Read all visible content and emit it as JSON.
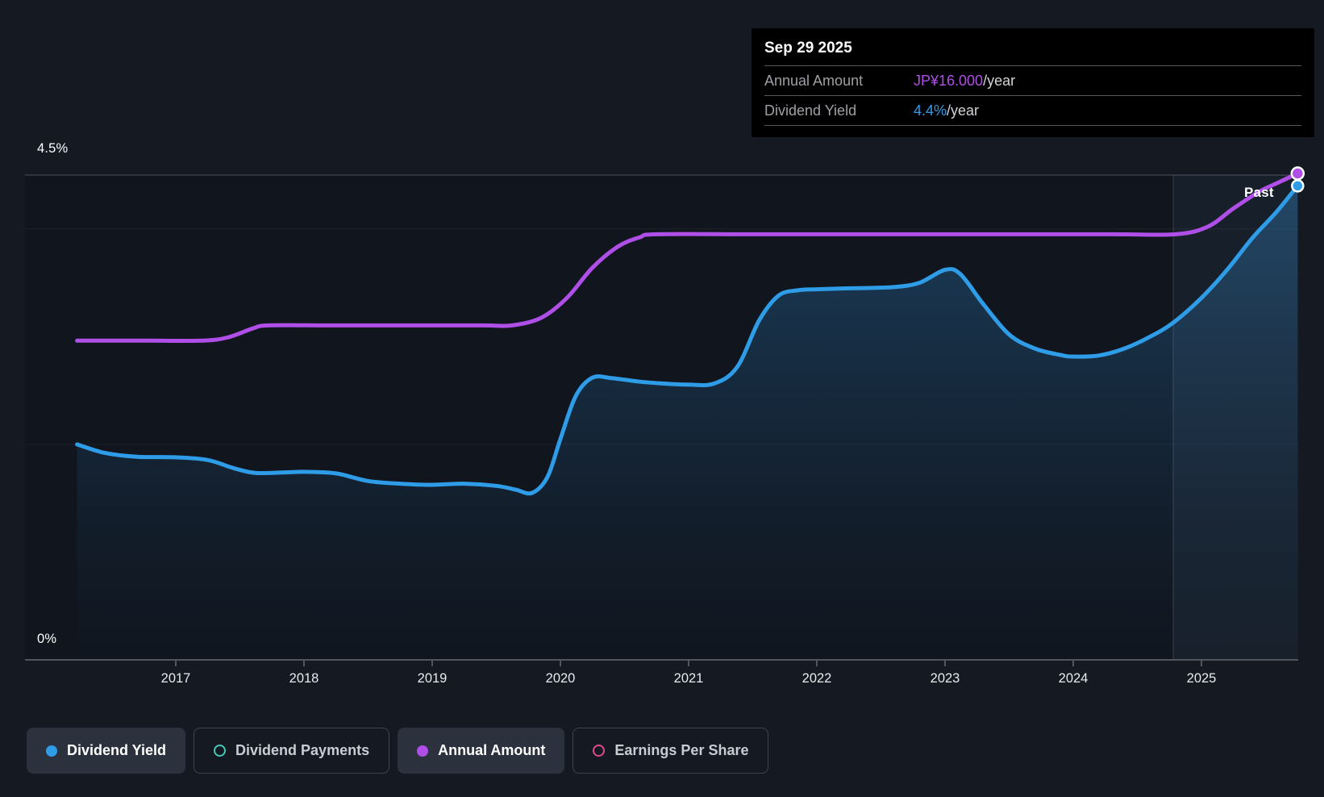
{
  "tooltip": {
    "date": "Sep 29 2025",
    "rows": [
      {
        "label": "Annual Amount",
        "value": "JP¥16.000",
        "suffix": "/year",
        "color": "#b04ee8"
      },
      {
        "label": "Dividend Yield",
        "value": "4.4%",
        "suffix": "/year",
        "color": "#2f9ce8"
      }
    ]
  },
  "axis": {
    "y_top": "4.5%",
    "y_bottom": "0%",
    "years": [
      "2017",
      "2018",
      "2019",
      "2020",
      "2021",
      "2022",
      "2023",
      "2024",
      "2025"
    ],
    "past": "Past"
  },
  "legend": {
    "items": [
      {
        "label": "Dividend Yield",
        "marker": "filled",
        "color": "#2f9ce8",
        "active": true
      },
      {
        "label": "Dividend Payments",
        "marker": "open",
        "color": "#45c8b8",
        "active": false
      },
      {
        "label": "Annual Amount",
        "marker": "filled",
        "color": "#b04ee8",
        "active": true
      },
      {
        "label": "Earnings Per Share",
        "marker": "open",
        "color": "#e04a90",
        "active": false
      }
    ]
  },
  "colors": {
    "page_bg": "#151922",
    "plot_bg": "#10151e",
    "blue": "#2f9ce8",
    "purple": "#b04ee8",
    "grid_strong": "#41464f",
    "axis_line": "#51565e"
  },
  "chart_data": {
    "type": "line",
    "title": "Dividend history (yield and annual amount)",
    "x_axis": {
      "ticks": [
        2017,
        2018,
        2019,
        2020,
        2021,
        2022,
        2023,
        2024,
        2025
      ],
      "range": [
        2016.23,
        2025.75
      ]
    },
    "y_axis_yield_percent": {
      "min": 0,
      "max": 4.5,
      "gridlines": [
        4.5,
        4.0,
        2.0,
        0
      ]
    },
    "past_region_start": 2024.78,
    "last_point": {
      "date": "Sep 29 2025",
      "annual_amount": "JP¥16.000/year",
      "dividend_yield": "4.4%/year"
    },
    "series": [
      {
        "name": "Dividend Yield",
        "unit": "percent",
        "color": "#2f9ce8",
        "style": "area",
        "points": [
          [
            2016.23,
            2.0
          ],
          [
            2016.45,
            1.92
          ],
          [
            2016.7,
            1.885
          ],
          [
            2017.0,
            1.88
          ],
          [
            2017.25,
            1.855
          ],
          [
            2017.45,
            1.78
          ],
          [
            2017.62,
            1.735
          ],
          [
            2017.85,
            1.74
          ],
          [
            2018.0,
            1.745
          ],
          [
            2018.25,
            1.73
          ],
          [
            2018.5,
            1.66
          ],
          [
            2018.75,
            1.635
          ],
          [
            2019.0,
            1.625
          ],
          [
            2019.25,
            1.635
          ],
          [
            2019.5,
            1.615
          ],
          [
            2019.65,
            1.58
          ],
          [
            2019.78,
            1.55
          ],
          [
            2019.9,
            1.7
          ],
          [
            2020.0,
            2.05
          ],
          [
            2020.12,
            2.45
          ],
          [
            2020.25,
            2.62
          ],
          [
            2020.4,
            2.615
          ],
          [
            2020.6,
            2.585
          ],
          [
            2020.8,
            2.565
          ],
          [
            2021.0,
            2.555
          ],
          [
            2021.2,
            2.565
          ],
          [
            2021.38,
            2.72
          ],
          [
            2021.55,
            3.15
          ],
          [
            2021.7,
            3.38
          ],
          [
            2021.85,
            3.43
          ],
          [
            2022.0,
            3.44
          ],
          [
            2022.3,
            3.45
          ],
          [
            2022.6,
            3.46
          ],
          [
            2022.8,
            3.5
          ],
          [
            2023.0,
            3.62
          ],
          [
            2023.12,
            3.58
          ],
          [
            2023.3,
            3.3
          ],
          [
            2023.5,
            3.02
          ],
          [
            2023.7,
            2.89
          ],
          [
            2023.9,
            2.83
          ],
          [
            2024.0,
            2.815
          ],
          [
            2024.2,
            2.825
          ],
          [
            2024.4,
            2.89
          ],
          [
            2024.6,
            3.0
          ],
          [
            2024.78,
            3.13
          ],
          [
            2025.0,
            3.36
          ],
          [
            2025.2,
            3.62
          ],
          [
            2025.4,
            3.92
          ],
          [
            2025.58,
            4.15
          ],
          [
            2025.75,
            4.4
          ]
        ]
      },
      {
        "name": "Annual Amount",
        "unit": "JPY_per_year",
        "color": "#b04ee8",
        "style": "line",
        "points": [
          [
            2016.23,
            10.5
          ],
          [
            2016.8,
            10.5
          ],
          [
            2017.2,
            10.5
          ],
          [
            2017.4,
            10.6
          ],
          [
            2017.6,
            10.9
          ],
          [
            2017.72,
            11.0
          ],
          [
            2018.2,
            11.0
          ],
          [
            2018.8,
            11.0
          ],
          [
            2019.4,
            11.0
          ],
          [
            2019.62,
            11.0
          ],
          [
            2019.85,
            11.25
          ],
          [
            2020.05,
            11.9
          ],
          [
            2020.25,
            12.9
          ],
          [
            2020.45,
            13.6
          ],
          [
            2020.62,
            13.9
          ],
          [
            2020.75,
            14.0
          ],
          [
            2021.5,
            14.0
          ],
          [
            2022.5,
            14.0
          ],
          [
            2023.5,
            14.0
          ],
          [
            2024.3,
            14.0
          ],
          [
            2024.8,
            14.0
          ],
          [
            2025.05,
            14.25
          ],
          [
            2025.25,
            14.85
          ],
          [
            2025.45,
            15.4
          ],
          [
            2025.6,
            15.7
          ],
          [
            2025.75,
            16.0
          ]
        ]
      }
    ],
    "legend_position": "bottom"
  }
}
